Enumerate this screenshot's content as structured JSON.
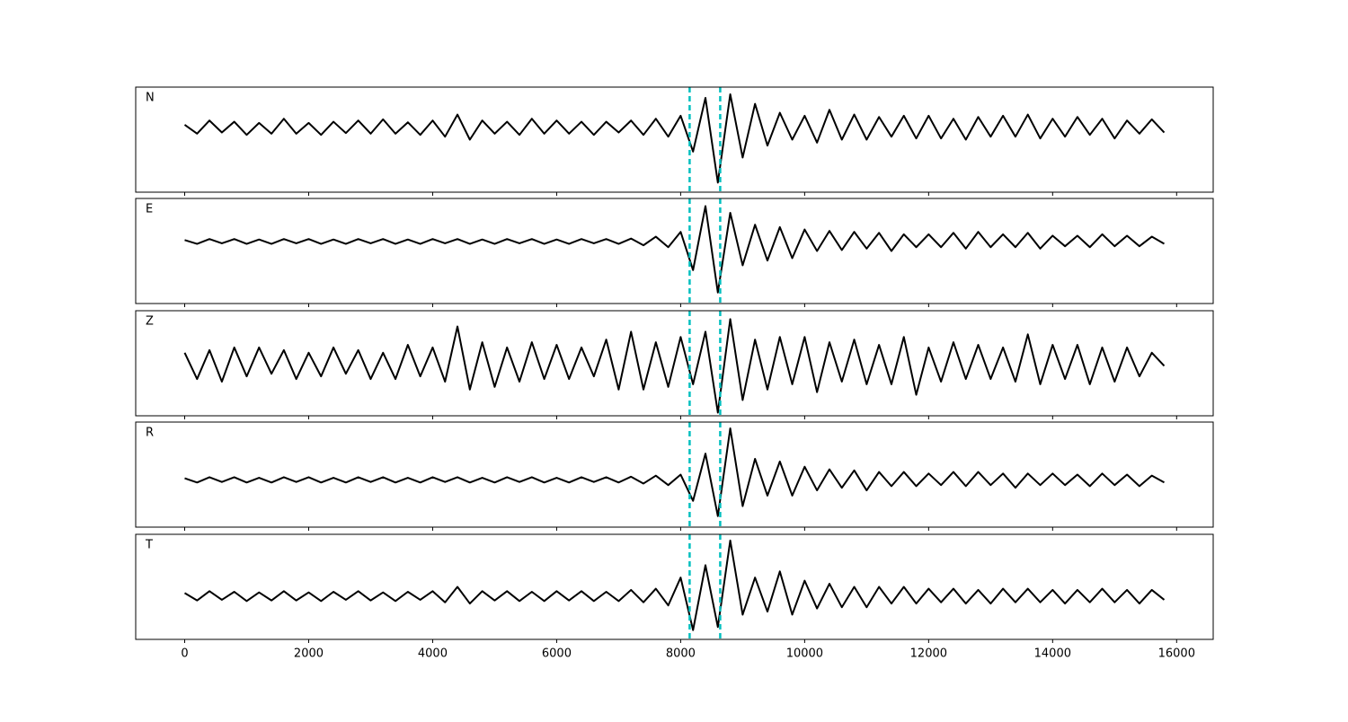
{
  "chart_data": [
    {
      "type": "line",
      "title": "N",
      "color": "#000000",
      "vlines": [
        8145,
        8638
      ],
      "vline_color": "#00bfbf",
      "xlim": [
        -790,
        16590
      ],
      "ylim": [
        -1.08,
        0.68
      ],
      "xticks": [
        0,
        2000,
        4000,
        6000,
        8000,
        10000,
        12000,
        14000,
        16000
      ],
      "x": [
        0,
        200,
        400,
        600,
        800,
        1000,
        1200,
        1400,
        1600,
        1800,
        2000,
        2200,
        2400,
        2600,
        2800,
        3000,
        3200,
        3400,
        3600,
        3800,
        4000,
        4200,
        4400,
        4600,
        4800,
        5000,
        5200,
        5400,
        5600,
        5800,
        6000,
        6200,
        6400,
        6600,
        6800,
        7000,
        7200,
        7400,
        7600,
        7800,
        8000,
        8200,
        8400,
        8600,
        8800,
        9000,
        9200,
        9400,
        9600,
        9800,
        10000,
        10200,
        10400,
        10600,
        10800,
        11000,
        11200,
        11400,
        11600,
        11800,
        12000,
        12200,
        12400,
        12600,
        12800,
        13000,
        13200,
        13400,
        13600,
        13800,
        14000,
        14200,
        14400,
        14600,
        14800,
        15000,
        15200,
        15400,
        15600,
        15800
      ],
      "values": [
        0.05,
        -0.1,
        0.12,
        -0.08,
        0.1,
        -0.12,
        0.08,
        -0.1,
        0.15,
        -0.1,
        0.08,
        -0.12,
        0.1,
        -0.09,
        0.12,
        -0.1,
        0.14,
        -0.1,
        0.09,
        -0.12,
        0.12,
        -0.15,
        0.22,
        -0.2,
        0.12,
        -0.1,
        0.1,
        -0.12,
        0.15,
        -0.1,
        0.12,
        -0.1,
        0.1,
        -0.12,
        0.1,
        -0.08,
        0.12,
        -0.12,
        0.15,
        -0.15,
        0.2,
        -0.4,
        0.5,
        -0.92,
        0.56,
        -0.5,
        0.4,
        -0.3,
        0.25,
        -0.2,
        0.2,
        -0.25,
        0.3,
        -0.2,
        0.22,
        -0.2,
        0.18,
        -0.15,
        0.2,
        -0.18,
        0.2,
        -0.18,
        0.15,
        -0.2,
        0.18,
        -0.15,
        0.2,
        -0.15,
        0.22,
        -0.18,
        0.15,
        -0.15,
        0.18,
        -0.12,
        0.15,
        -0.18,
        0.12,
        -0.1,
        0.14,
        -0.08
      ]
    },
    {
      "type": "line",
      "title": "E",
      "color": "#000000",
      "vlines": [
        8145,
        8638
      ],
      "vline_color": "#00bfbf",
      "xlim": [
        -790,
        16590
      ],
      "ylim": [
        -1.3,
        0.9
      ],
      "xticks": [
        0,
        2000,
        4000,
        6000,
        8000,
        10000,
        12000,
        14000,
        16000
      ],
      "x": [
        0,
        200,
        400,
        600,
        800,
        1000,
        1200,
        1400,
        1600,
        1800,
        2000,
        2200,
        2400,
        2600,
        2800,
        3000,
        3200,
        3400,
        3600,
        3800,
        4000,
        4200,
        4400,
        4600,
        4800,
        5000,
        5200,
        5400,
        5600,
        5800,
        6000,
        6200,
        6400,
        6600,
        6800,
        7000,
        7200,
        7400,
        7600,
        7800,
        8000,
        8200,
        8400,
        8600,
        8800,
        9000,
        9200,
        9400,
        9600,
        9800,
        10000,
        10200,
        10400,
        10600,
        10800,
        11000,
        11200,
        11400,
        11600,
        11800,
        12000,
        12200,
        12400,
        12600,
        12800,
        13000,
        13200,
        13400,
        13600,
        13800,
        14000,
        14200,
        14400,
        14600,
        14800,
        15000,
        15200,
        15400,
        15600,
        15800
      ],
      "values": [
        0.03,
        -0.05,
        0.05,
        -0.04,
        0.05,
        -0.05,
        0.04,
        -0.05,
        0.05,
        -0.04,
        0.05,
        -0.05,
        0.04,
        -0.05,
        0.05,
        -0.04,
        0.05,
        -0.05,
        0.04,
        -0.05,
        0.05,
        -0.04,
        0.05,
        -0.05,
        0.04,
        -0.05,
        0.05,
        -0.04,
        0.05,
        -0.05,
        0.04,
        -0.05,
        0.05,
        -0.04,
        0.05,
        -0.05,
        0.06,
        -0.08,
        0.1,
        -0.12,
        0.2,
        -0.6,
        0.74,
        -1.07,
        0.6,
        -0.5,
        0.35,
        -0.4,
        0.3,
        -0.35,
        0.25,
        -0.2,
        0.22,
        -0.18,
        0.2,
        -0.15,
        0.18,
        -0.2,
        0.15,
        -0.12,
        0.15,
        -0.12,
        0.18,
        -0.15,
        0.2,
        -0.12,
        0.15,
        -0.12,
        0.18,
        -0.15,
        0.12,
        -0.1,
        0.12,
        -0.12,
        0.15,
        -0.1,
        0.12,
        -0.1,
        0.1,
        -0.05
      ]
    },
    {
      "type": "line",
      "title": "Z",
      "color": "#000000",
      "vlines": [
        8145,
        8638
      ],
      "vline_color": "#00bfbf",
      "xlim": [
        -790,
        16590
      ],
      "ylim": [
        -1,
        1
      ],
      "xticks": [
        0,
        2000,
        4000,
        6000,
        8000,
        10000,
        12000,
        14000,
        16000
      ],
      "x": [
        0,
        200,
        400,
        600,
        800,
        1000,
        1200,
        1400,
        1600,
        1800,
        2000,
        2200,
        2400,
        2600,
        2800,
        3000,
        3200,
        3400,
        3600,
        3800,
        4000,
        4200,
        4400,
        4600,
        4800,
        5000,
        5200,
        5400,
        5600,
        5800,
        6000,
        6200,
        6400,
        6600,
        6800,
        7000,
        7200,
        7400,
        7600,
        7800,
        8000,
        8200,
        8400,
        8600,
        8800,
        9000,
        9200,
        9400,
        9600,
        9800,
        10000,
        10200,
        10400,
        10600,
        10800,
        11000,
        11200,
        11400,
        11600,
        11800,
        12000,
        12200,
        12400,
        12600,
        12800,
        13000,
        13200,
        13400,
        13600,
        13800,
        14000,
        14200,
        14400,
        14600,
        14800,
        15000,
        15200,
        15400,
        15600,
        15800
      ],
      "values": [
        0.2,
        -0.3,
        0.25,
        -0.35,
        0.3,
        -0.25,
        0.3,
        -0.2,
        0.25,
        -0.3,
        0.2,
        -0.25,
        0.3,
        -0.2,
        0.25,
        -0.3,
        0.2,
        -0.3,
        0.35,
        -0.25,
        0.3,
        -0.35,
        0.7,
        -0.5,
        0.4,
        -0.45,
        0.3,
        -0.35,
        0.4,
        -0.3,
        0.35,
        -0.3,
        0.3,
        -0.25,
        0.45,
        -0.5,
        0.6,
        -0.5,
        0.4,
        -0.45,
        0.5,
        -0.4,
        0.6,
        -0.94,
        0.84,
        -0.7,
        0.45,
        -0.5,
        0.5,
        -0.4,
        0.5,
        -0.55,
        0.4,
        -0.35,
        0.45,
        -0.4,
        0.35,
        -0.4,
        0.5,
        -0.6,
        0.3,
        -0.35,
        0.4,
        -0.3,
        0.35,
        -0.3,
        0.3,
        -0.35,
        0.55,
        -0.4,
        0.35,
        -0.3,
        0.35,
        -0.4,
        0.3,
        -0.35,
        0.3,
        -0.25,
        0.2,
        -0.05
      ]
    },
    {
      "type": "line",
      "title": "R",
      "color": "#000000",
      "vlines": [
        8145,
        8638
      ],
      "vline_color": "#00bfbf",
      "xlim": [
        -790,
        16590
      ],
      "ylim": [
        -0.9,
        1.1
      ],
      "xticks": [
        0,
        2000,
        4000,
        6000,
        8000,
        10000,
        12000,
        14000,
        16000
      ],
      "x": [
        0,
        200,
        400,
        600,
        800,
        1000,
        1200,
        1400,
        1600,
        1800,
        2000,
        2200,
        2400,
        2600,
        2800,
        3000,
        3200,
        3400,
        3600,
        3800,
        4000,
        4200,
        4400,
        4600,
        4800,
        5000,
        5200,
        5400,
        5600,
        5800,
        6000,
        6200,
        6400,
        6600,
        6800,
        7000,
        7200,
        7400,
        7600,
        7800,
        8000,
        8200,
        8400,
        8600,
        8800,
        9000,
        9200,
        9400,
        9600,
        9800,
        10000,
        10200,
        10400,
        10600,
        10800,
        11000,
        11200,
        11400,
        11600,
        11800,
        12000,
        12200,
        12400,
        12600,
        12800,
        13000,
        13200,
        13400,
        13600,
        13800,
        14000,
        14200,
        14400,
        14600,
        14800,
        15000,
        15200,
        15400,
        15600,
        15800
      ],
      "values": [
        0.03,
        -0.05,
        0.05,
        -0.04,
        0.05,
        -0.05,
        0.04,
        -0.05,
        0.05,
        -0.04,
        0.05,
        -0.05,
        0.04,
        -0.05,
        0.05,
        -0.04,
        0.05,
        -0.05,
        0.04,
        -0.05,
        0.05,
        -0.04,
        0.05,
        -0.05,
        0.04,
        -0.05,
        0.05,
        -0.04,
        0.05,
        -0.05,
        0.04,
        -0.05,
        0.05,
        -0.04,
        0.05,
        -0.05,
        0.06,
        -0.07,
        0.08,
        -0.1,
        0.1,
        -0.4,
        0.5,
        -0.69,
        0.98,
        -0.5,
        0.4,
        -0.3,
        0.35,
        -0.3,
        0.25,
        -0.2,
        0.2,
        -0.15,
        0.18,
        -0.2,
        0.15,
        -0.12,
        0.15,
        -0.12,
        0.12,
        -0.1,
        0.15,
        -0.12,
        0.15,
        -0.1,
        0.12,
        -0.15,
        0.12,
        -0.1,
        0.12,
        -0.1,
        0.1,
        -0.12,
        0.12,
        -0.1,
        0.1,
        -0.12,
        0.08,
        -0.05
      ]
    },
    {
      "type": "line",
      "title": "T",
      "color": "#000000",
      "vlines": [
        8145,
        8638
      ],
      "vline_color": "#00bfbf",
      "xlim": [
        -790,
        16590
      ],
      "ylim": [
        -0.7,
        1.0
      ],
      "xticks": [
        0,
        2000,
        4000,
        6000,
        8000,
        10000,
        12000,
        14000,
        16000
      ],
      "x": [
        0,
        200,
        400,
        600,
        800,
        1000,
        1200,
        1400,
        1600,
        1800,
        2000,
        2200,
        2400,
        2600,
        2800,
        3000,
        3200,
        3400,
        3600,
        3800,
        4000,
        4200,
        4400,
        4600,
        4800,
        5000,
        5200,
        5400,
        5600,
        5800,
        6000,
        6200,
        6400,
        6600,
        6800,
        7000,
        7200,
        7400,
        7600,
        7800,
        8000,
        8200,
        8400,
        8600,
        8800,
        9000,
        9200,
        9400,
        9600,
        9800,
        10000,
        10200,
        10400,
        10600,
        10800,
        11000,
        11200,
        11400,
        11600,
        11800,
        12000,
        12200,
        12400,
        12600,
        12800,
        13000,
        13200,
        13400,
        13600,
        13800,
        14000,
        14200,
        14400,
        14600,
        14800,
        15000,
        15200,
        15400,
        15600,
        15800
      ],
      "values": [
        0.05,
        -0.07,
        0.08,
        -0.06,
        0.07,
        -0.08,
        0.06,
        -0.07,
        0.08,
        -0.07,
        0.06,
        -0.08,
        0.07,
        -0.06,
        0.08,
        -0.07,
        0.06,
        -0.08,
        0.07,
        -0.06,
        0.08,
        -0.1,
        0.15,
        -0.12,
        0.08,
        -0.07,
        0.08,
        -0.08,
        0.07,
        -0.08,
        0.08,
        -0.07,
        0.08,
        -0.08,
        0.07,
        -0.08,
        0.1,
        -0.1,
        0.12,
        -0.15,
        0.3,
        -0.55,
        0.5,
        -0.5,
        0.9,
        -0.3,
        0.3,
        -0.25,
        0.4,
        -0.3,
        0.25,
        -0.2,
        0.2,
        -0.18,
        0.15,
        -0.18,
        0.15,
        -0.12,
        0.15,
        -0.12,
        0.12,
        -0.1,
        0.12,
        -0.12,
        0.1,
        -0.12,
        0.12,
        -0.1,
        0.12,
        -0.1,
        0.1,
        -0.12,
        0.1,
        -0.1,
        0.12,
        -0.1,
        0.1,
        -0.12,
        0.1,
        -0.06
      ]
    }
  ]
}
